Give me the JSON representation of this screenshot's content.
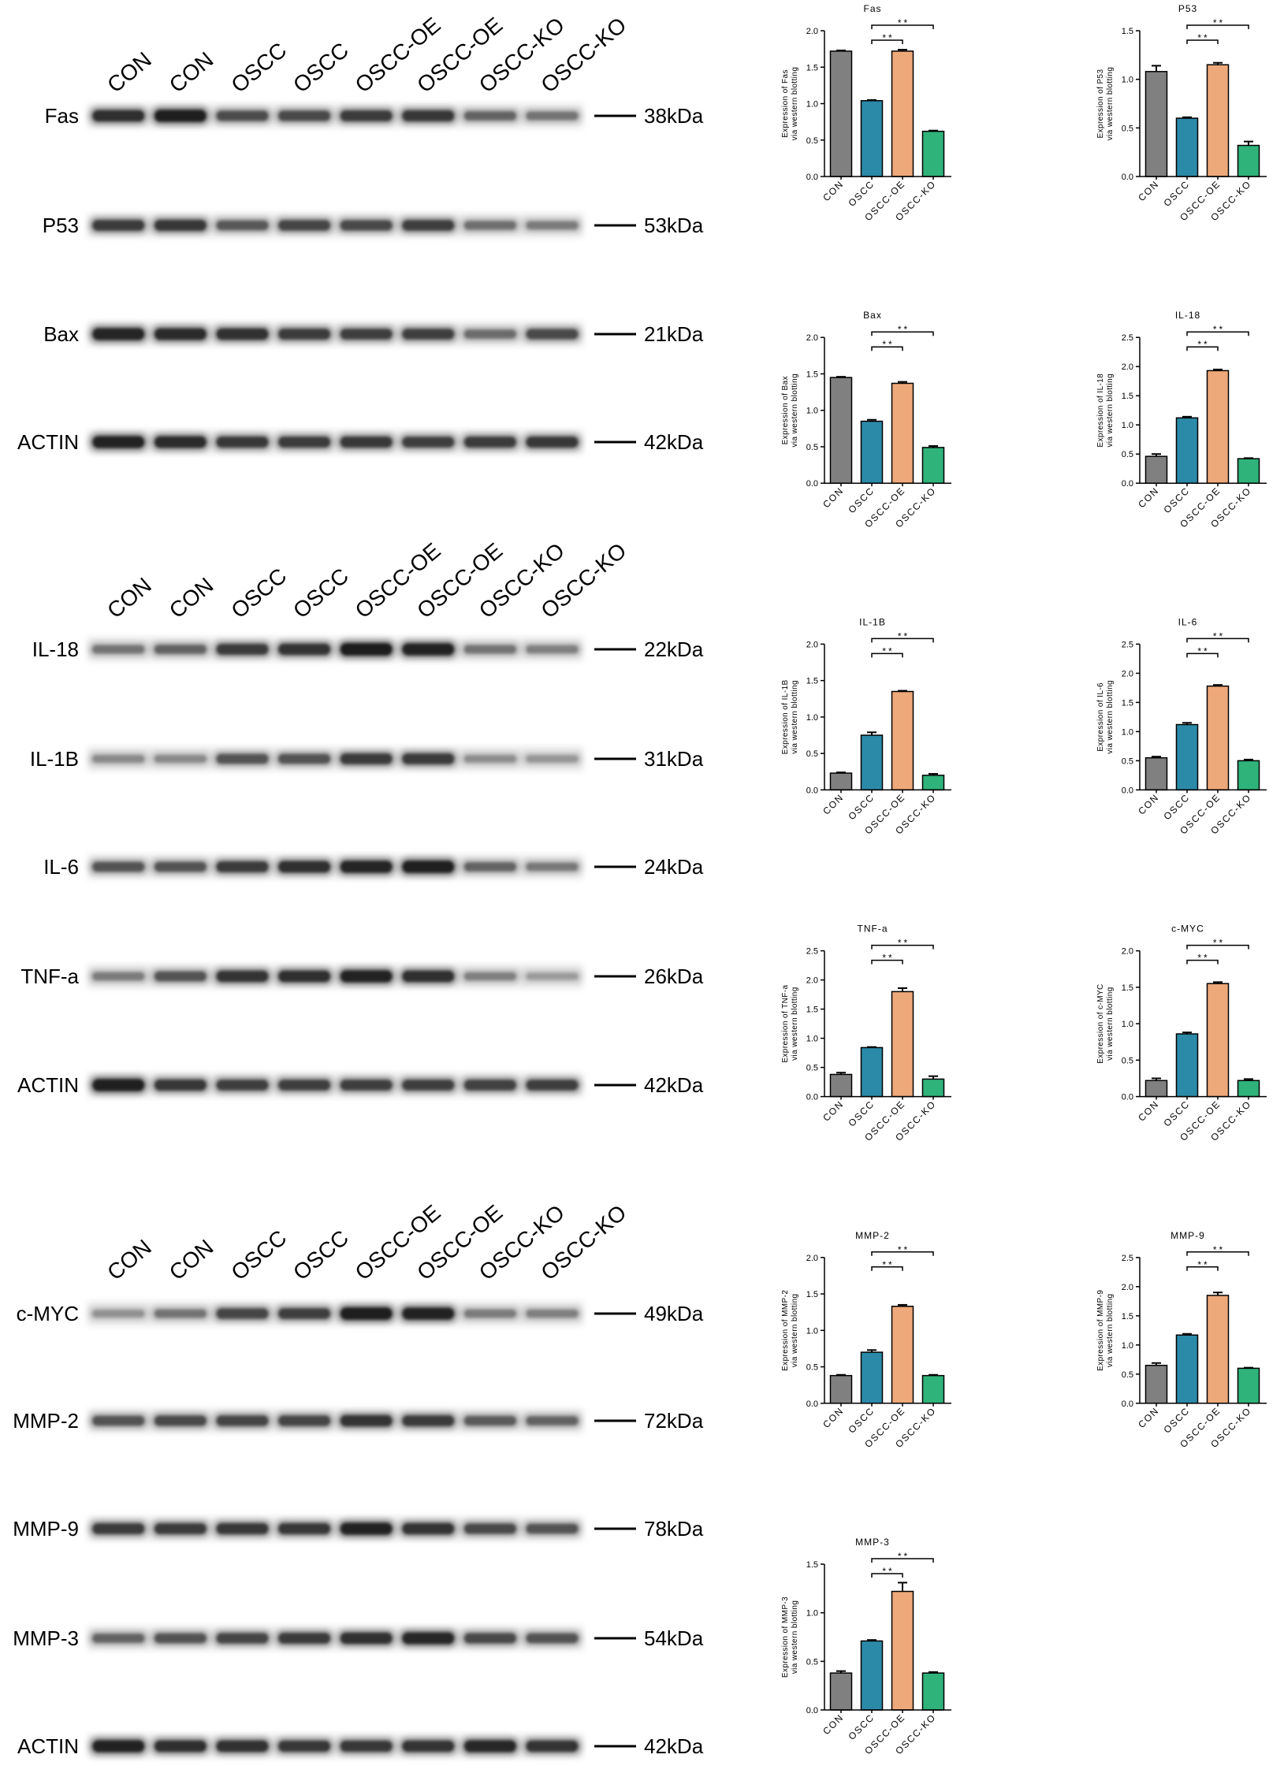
{
  "colors": {
    "CON": "#808080",
    "OSCC": "#2b8aa8",
    "OSCC-OE": "#eea97a",
    "OSCC-KO": "#2fb37b"
  },
  "blots": [
    {
      "lanes": [
        "CON",
        "CON",
        "OSCC",
        "OSCC",
        "OSCC-OE",
        "OSCC-OE",
        "OSCC-KO",
        "OSCC-KO"
      ],
      "rows": [
        {
          "protein": "Fas",
          "marker": "38kDa",
          "intensity": [
            0.82,
            0.95,
            0.6,
            0.62,
            0.72,
            0.75,
            0.45,
            0.35
          ]
        },
        {
          "protein": "P53",
          "marker": "53kDa",
          "intensity": [
            0.72,
            0.75,
            0.52,
            0.65,
            0.62,
            0.7,
            0.38,
            0.3
          ]
        },
        {
          "protein": "Bax",
          "marker": "21kDa",
          "intensity": [
            0.9,
            0.85,
            0.8,
            0.72,
            0.7,
            0.7,
            0.4,
            0.62
          ]
        },
        {
          "protein": "ACTIN",
          "marker": "42kDa",
          "intensity": [
            0.92,
            0.85,
            0.75,
            0.72,
            0.75,
            0.7,
            0.72,
            0.75
          ]
        }
      ]
    },
    {
      "lanes": [
        "CON",
        "CON",
        "OSCC",
        "OSCC",
        "OSCC-OE",
        "OSCC-OE",
        "OSCC-KO",
        "OSCC-KO"
      ],
      "rows": [
        {
          "protein": "IL-18",
          "marker": "22kDa",
          "intensity": [
            0.35,
            0.45,
            0.72,
            0.78,
            0.98,
            0.92,
            0.35,
            0.28
          ]
        },
        {
          "protein": "IL-1B",
          "marker": "31kDa",
          "intensity": [
            0.22,
            0.22,
            0.55,
            0.55,
            0.72,
            0.72,
            0.2,
            0.15
          ]
        },
        {
          "protein": "IL-6",
          "marker": "24kDa",
          "intensity": [
            0.55,
            0.55,
            0.72,
            0.82,
            0.9,
            0.95,
            0.45,
            0.32
          ]
        },
        {
          "protein": "TNF-a",
          "marker": "26kDa",
          "intensity": [
            0.3,
            0.55,
            0.78,
            0.82,
            0.92,
            0.82,
            0.28,
            0.12
          ]
        },
        {
          "protein": "ACTIN",
          "marker": "42kDa",
          "intensity": [
            0.95,
            0.75,
            0.7,
            0.7,
            0.7,
            0.7,
            0.68,
            0.7
          ]
        }
      ]
    },
    {
      "lanes": [
        "CON",
        "CON",
        "OSCC",
        "OSCC",
        "OSCC-OE",
        "OSCC-OE",
        "OSCC-KO",
        "OSCC-KO"
      ],
      "rows": [
        {
          "protein": "c-MYC",
          "marker": "49kDa",
          "intensity": [
            0.18,
            0.35,
            0.65,
            0.7,
            0.96,
            0.92,
            0.3,
            0.28
          ]
        },
        {
          "protein": "MMP-2",
          "marker": "72kDa",
          "intensity": [
            0.55,
            0.62,
            0.65,
            0.65,
            0.78,
            0.72,
            0.5,
            0.45
          ]
        },
        {
          "protein": "MMP-9",
          "marker": "78kDa",
          "intensity": [
            0.72,
            0.72,
            0.75,
            0.75,
            0.92,
            0.78,
            0.62,
            0.55
          ]
        },
        {
          "protein": "MMP-3",
          "marker": "54kDa",
          "intensity": [
            0.45,
            0.55,
            0.65,
            0.72,
            0.8,
            0.88,
            0.62,
            0.55
          ]
        },
        {
          "protein": "ACTIN",
          "marker": "42kDa",
          "intensity": [
            0.92,
            0.82,
            0.8,
            0.75,
            0.75,
            0.78,
            0.88,
            0.78
          ]
        }
      ]
    }
  ],
  "chart_data": [
    {
      "type": "bar",
      "title": "Fas",
      "ylabel": [
        "Expression of Fas",
        "via western blotting"
      ],
      "categories": [
        "CON",
        "OSCC",
        "OSCC-OE",
        "OSCC-KO"
      ],
      "values": [
        1.72,
        1.04,
        1.72,
        0.62
      ],
      "errors": [
        0.01,
        0.01,
        0.02,
        0.01
      ],
      "ylim": [
        0,
        2
      ],
      "yticks": [
        "0.0",
        "0.5",
        "1.0",
        "1.5",
        "2.0"
      ],
      "significance": [
        {
          "between": [
            1,
            3
          ],
          "label": "**"
        },
        {
          "between": [
            1,
            2
          ],
          "label": "**"
        }
      ]
    },
    {
      "type": "bar",
      "title": "P53",
      "ylabel": [
        "Expression of P53",
        "via western blotting"
      ],
      "categories": [
        "CON",
        "OSCC",
        "OSCC-OE",
        "OSCC-KO"
      ],
      "values": [
        1.08,
        0.6,
        1.15,
        0.32
      ],
      "errors": [
        0.06,
        0.01,
        0.02,
        0.04
      ],
      "ylim": [
        0,
        1.5
      ],
      "yticks": [
        "0.0",
        "0.5",
        "1.0",
        "1.5"
      ],
      "significance": [
        {
          "between": [
            1,
            3
          ],
          "label": "**"
        },
        {
          "between": [
            1,
            2
          ],
          "label": "**"
        }
      ]
    },
    {
      "type": "bar",
      "title": "Bax",
      "ylabel": [
        "Expression of Bax",
        "via western blotting"
      ],
      "categories": [
        "CON",
        "OSCC",
        "OSCC-OE",
        "OSCC-KO"
      ],
      "values": [
        1.45,
        0.85,
        1.37,
        0.49
      ],
      "errors": [
        0.01,
        0.02,
        0.02,
        0.02
      ],
      "ylim": [
        0,
        2
      ],
      "yticks": [
        "0.0",
        "0.5",
        "1.0",
        "1.5",
        "2.0"
      ],
      "significance": [
        {
          "between": [
            1,
            3
          ],
          "label": "**"
        },
        {
          "between": [
            1,
            2
          ],
          "label": "**"
        }
      ]
    },
    {
      "type": "bar",
      "title": "IL-18",
      "ylabel": [
        "Expression of IL-18",
        "via western blotting"
      ],
      "categories": [
        "CON",
        "OSCC",
        "OSCC-OE",
        "OSCC-KO"
      ],
      "values": [
        0.46,
        1.12,
        1.93,
        0.42
      ],
      "errors": [
        0.04,
        0.02,
        0.02,
        0.01
      ],
      "ylim": [
        0,
        2.5
      ],
      "yticks": [
        "0.0",
        "0.5",
        "1.0",
        "1.5",
        "2.0",
        "2.5"
      ],
      "significance": [
        {
          "between": [
            1,
            3
          ],
          "label": "**"
        },
        {
          "between": [
            1,
            2
          ],
          "label": "**"
        }
      ]
    },
    {
      "type": "bar",
      "title": "IL-1B",
      "ylabel": [
        "Expression of IL-1B",
        "via western blotting"
      ],
      "categories": [
        "CON",
        "OSCC",
        "OSCC-OE",
        "OSCC-KO"
      ],
      "values": [
        0.23,
        0.75,
        1.35,
        0.2
      ],
      "errors": [
        0.01,
        0.04,
        0.01,
        0.02
      ],
      "ylim": [
        0,
        2
      ],
      "yticks": [
        "0.0",
        "0.5",
        "1.0",
        "1.5",
        "2.0"
      ],
      "significance": [
        {
          "between": [
            1,
            3
          ],
          "label": "**"
        },
        {
          "between": [
            1,
            2
          ],
          "label": "**"
        }
      ]
    },
    {
      "type": "bar",
      "title": "IL-6",
      "ylabel": [
        "Expression of IL-6",
        "via western blotting"
      ],
      "categories": [
        "CON",
        "OSCC",
        "OSCC-OE",
        "OSCC-KO"
      ],
      "values": [
        0.55,
        1.12,
        1.78,
        0.5
      ],
      "errors": [
        0.02,
        0.03,
        0.02,
        0.02
      ],
      "ylim": [
        0,
        2.5
      ],
      "yticks": [
        "0.0",
        "0.5",
        "1.0",
        "1.5",
        "2.0",
        "2.5"
      ],
      "significance": [
        {
          "between": [
            1,
            3
          ],
          "label": "**"
        },
        {
          "between": [
            1,
            2
          ],
          "label": "**"
        }
      ]
    },
    {
      "type": "bar",
      "title": "TNF-a",
      "ylabel": [
        "Expression of TNF-a",
        "via western blotting"
      ],
      "categories": [
        "CON",
        "OSCC",
        "OSCC-OE",
        "OSCC-KO"
      ],
      "values": [
        0.38,
        0.84,
        1.8,
        0.3
      ],
      "errors": [
        0.03,
        0.01,
        0.06,
        0.05
      ],
      "ylim": [
        0,
        2.5
      ],
      "yticks": [
        "0.0",
        "0.5",
        "1.0",
        "1.5",
        "2.0",
        "2.5"
      ],
      "significance": [
        {
          "between": [
            1,
            3
          ],
          "label": "**"
        },
        {
          "between": [
            1,
            2
          ],
          "label": "**"
        }
      ]
    },
    {
      "type": "bar",
      "title": "c-MYC",
      "ylabel": [
        "Expression of c-MYC",
        "via western blotting"
      ],
      "categories": [
        "CON",
        "OSCC",
        "OSCC-OE",
        "OSCC-KO"
      ],
      "values": [
        0.22,
        0.86,
        1.55,
        0.22
      ],
      "errors": [
        0.03,
        0.02,
        0.02,
        0.02
      ],
      "ylim": [
        0,
        2
      ],
      "yticks": [
        "0.0",
        "0.5",
        "1.0",
        "1.5",
        "2.0"
      ],
      "significance": [
        {
          "between": [
            1,
            3
          ],
          "label": "**"
        },
        {
          "between": [
            1,
            2
          ],
          "label": "**"
        }
      ]
    },
    {
      "type": "bar",
      "title": "MMP-2",
      "ylabel": [
        "Expression of MMP-2",
        "via western blotting"
      ],
      "categories": [
        "CON",
        "OSCC",
        "OSCC-OE",
        "OSCC-KO"
      ],
      "values": [
        0.38,
        0.7,
        1.33,
        0.38
      ],
      "errors": [
        0.01,
        0.03,
        0.02,
        0.01
      ],
      "ylim": [
        0,
        2
      ],
      "yticks": [
        "0.0",
        "0.5",
        "1.0",
        "1.5",
        "2.0"
      ],
      "significance": [
        {
          "between": [
            1,
            3
          ],
          "label": "**"
        },
        {
          "between": [
            1,
            2
          ],
          "label": "**"
        }
      ]
    },
    {
      "type": "bar",
      "title": "MMP-9",
      "ylabel": [
        "Expression of MMP-9",
        "via western blotting"
      ],
      "categories": [
        "CON",
        "OSCC",
        "OSCC-OE",
        "OSCC-KO"
      ],
      "values": [
        0.65,
        1.17,
        1.85,
        0.6
      ],
      "errors": [
        0.04,
        0.02,
        0.05,
        0.01
      ],
      "ylim": [
        0,
        2.5
      ],
      "yticks": [
        "0.0",
        "0.5",
        "1.0",
        "1.5",
        "2.0",
        "2.5"
      ],
      "significance": [
        {
          "between": [
            1,
            3
          ],
          "label": "**"
        },
        {
          "between": [
            1,
            2
          ],
          "label": "**"
        }
      ]
    },
    {
      "type": "bar",
      "title": "MMP-3",
      "ylabel": [
        "Expression of MMP-3",
        "via western blotting"
      ],
      "categories": [
        "CON",
        "OSCC",
        "OSCC-OE",
        "OSCC-KO"
      ],
      "values": [
        0.38,
        0.71,
        1.22,
        0.38
      ],
      "errors": [
        0.02,
        0.01,
        0.09,
        0.01
      ],
      "ylim": [
        0,
        1.5
      ],
      "yticks": [
        "0.0",
        "0.5",
        "1.0",
        "1.5"
      ],
      "significance": [
        {
          "between": [
            1,
            3
          ],
          "label": "**"
        },
        {
          "between": [
            1,
            2
          ],
          "label": "**"
        }
      ]
    }
  ]
}
